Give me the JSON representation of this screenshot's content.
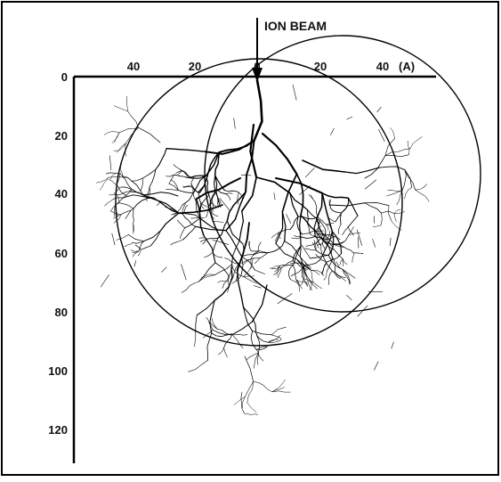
{
  "figure": {
    "beam_label": "ION BEAM",
    "unit_label": "(A)",
    "top_axis_ticks": [
      "40",
      "20",
      "0",
      "20",
      "40"
    ],
    "left_axis_ticks": [
      "0",
      "20",
      "40",
      "60",
      "80",
      "100",
      "120"
    ]
  }
}
